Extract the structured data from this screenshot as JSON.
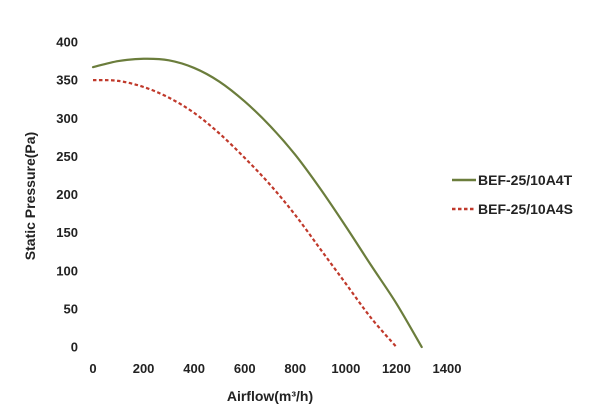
{
  "chart_data": {
    "type": "line",
    "title": "",
    "xlabel": "Airflow(m³/h)",
    "ylabel": "Static Pressure(Pa)",
    "xlim": [
      0,
      1400
    ],
    "ylim": [
      0,
      400
    ],
    "xticks": [
      0,
      200,
      400,
      600,
      800,
      1000,
      1200,
      1400
    ],
    "yticks": [
      0,
      50,
      100,
      150,
      200,
      250,
      300,
      350,
      400
    ],
    "grid": false,
    "legend_position": "right",
    "series": [
      {
        "name": "BEF-25/10A4T",
        "color": "#6b7d3c",
        "style": "solid",
        "x": [
          0,
          100,
          200,
          300,
          400,
          500,
          600,
          700,
          800,
          900,
          1000,
          1100,
          1200,
          1300
        ],
        "y": [
          367,
          375,
          378,
          376,
          366,
          348,
          322,
          290,
          252,
          207,
          158,
          107,
          57,
          0
        ]
      },
      {
        "name": "BEF-25/10A4S",
        "color": "#c0392b",
        "style": "dashed",
        "x": [
          0,
          100,
          200,
          300,
          400,
          500,
          600,
          700,
          800,
          900,
          1000,
          1100,
          1200
        ],
        "y": [
          350,
          349,
          341,
          327,
          307,
          280,
          248,
          213,
          173,
          128,
          83,
          38,
          0
        ]
      }
    ]
  }
}
